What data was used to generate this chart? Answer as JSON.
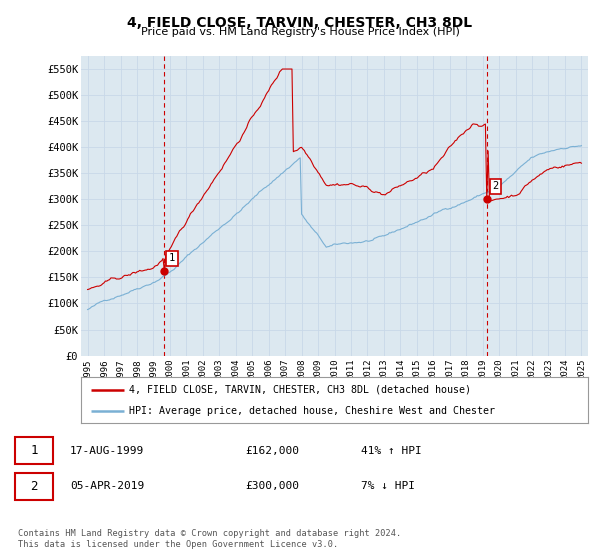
{
  "title": "4, FIELD CLOSE, TARVIN, CHESTER, CH3 8DL",
  "subtitle": "Price paid vs. HM Land Registry's House Price Index (HPI)",
  "sale1": {
    "date": "17-AUG-1999",
    "price": 162000,
    "hpi_change": "41% ↑ HPI",
    "label": "1",
    "x": 1999.63
  },
  "sale2": {
    "date": "05-APR-2019",
    "price": 300000,
    "hpi_change": "7% ↓ HPI",
    "label": "2",
    "x": 2019.27
  },
  "legend_line1": "4, FIELD CLOSE, TARVIN, CHESTER, CH3 8DL (detached house)",
  "legend_line2": "HPI: Average price, detached house, Cheshire West and Chester",
  "footer": "Contains HM Land Registry data © Crown copyright and database right 2024.\nThis data is licensed under the Open Government Licence v3.0.",
  "red_color": "#cc0000",
  "blue_color": "#7ab0d4",
  "vline_color": "#cc0000",
  "grid_color": "#c8d8e8",
  "background_color": "#ffffff",
  "chart_bg": "#dce8f0",
  "ytick_labels": [
    "£0",
    "£50K",
    "£100K",
    "£150K",
    "£200K",
    "£250K",
    "£300K",
    "£350K",
    "£400K",
    "£450K",
    "£500K",
    "£550K"
  ],
  "yticks": [
    0,
    50000,
    100000,
    150000,
    200000,
    250000,
    300000,
    350000,
    400000,
    450000,
    500000,
    550000
  ],
  "ylim": [
    0,
    575000
  ]
}
